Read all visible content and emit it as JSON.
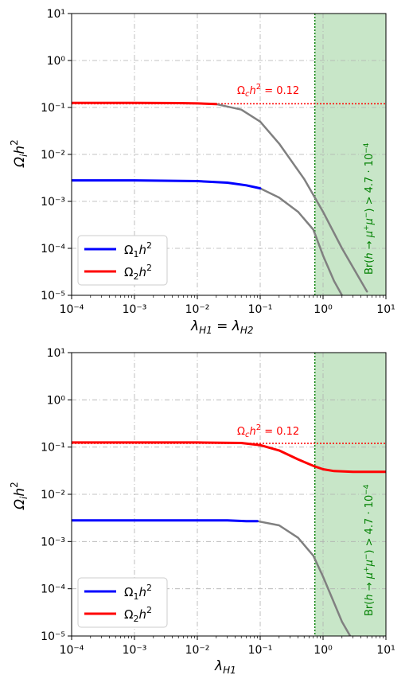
{
  "chart_data": [
    {
      "type": "line",
      "title": "",
      "xlabel": "λH1 = λH2",
      "ylabel": "Ωih²",
      "xscale": "log",
      "yscale": "log",
      "xlim": [
        0.0001,
        10
      ],
      "ylim": [
        1e-05,
        10
      ],
      "grid": true,
      "x_tick_labels": [
        "10⁻⁴",
        "10⁻³",
        "10⁻²",
        "10⁻¹",
        "10⁰",
        "10¹"
      ],
      "y_tick_labels": [
        "10⁻⁵",
        "10⁻⁴",
        "10⁻³",
        "10⁻²",
        "10⁻¹",
        "10⁰",
        "10¹"
      ],
      "series": [
        {
          "name": "Ω1h²",
          "color": "#0000ff",
          "x": [
            0.0001,
            0.001,
            0.01,
            0.03,
            0.06,
            0.1
          ],
          "y": [
            0.0028,
            0.0028,
            0.0027,
            0.0025,
            0.0022,
            0.0019
          ]
        },
        {
          "name": "Ω2h²",
          "color": "#ff0000",
          "x": [
            0.0001,
            0.001,
            0.005,
            0.01,
            0.02
          ],
          "y": [
            0.125,
            0.125,
            0.124,
            0.122,
            0.118
          ]
        },
        {
          "color": "#808080",
          "x": [
            0.1,
            0.2,
            0.4,
            0.7,
            1.0,
            1.5,
            2.0
          ],
          "y": [
            0.0019,
            0.0012,
            0.0006,
            0.00025,
            7e-05,
            2e-05,
            1e-05
          ]
        },
        {
          "color": "#808080",
          "x": [
            0.02,
            0.05,
            0.1,
            0.2,
            0.5,
            1.0,
            2.0,
            5.0
          ],
          "y": [
            0.118,
            0.09,
            0.05,
            0.017,
            0.003,
            0.0006,
            0.0001,
            1.2e-05
          ]
        }
      ],
      "hline": {
        "y": 0.12,
        "color": "#ff0000",
        "label": "Ωch² = 0.12"
      },
      "vline": {
        "x": 0.74,
        "color": "#008000"
      },
      "shaded_region": {
        "x": [
          0.74,
          10
        ],
        "color": "#c8e6c8",
        "label": "Br(h→μ⁺μ⁻) > 4.7·10⁻⁴"
      },
      "legend": "lower-left"
    },
    {
      "type": "line",
      "title": "",
      "xlabel": "λH1",
      "ylabel": "Ωih²",
      "xscale": "log",
      "yscale": "log",
      "xlim": [
        0.0001,
        10
      ],
      "ylim": [
        1e-05,
        10
      ],
      "grid": true,
      "x_tick_labels": [
        "10⁻⁴",
        "10⁻³",
        "10⁻²",
        "10⁻¹",
        "10⁰",
        "10¹"
      ],
      "y_tick_labels": [
        "10⁻⁵",
        "10⁻⁴",
        "10⁻³",
        "10⁻²",
        "10⁻¹",
        "10⁰",
        "10¹"
      ],
      "series": [
        {
          "name": "Ω1h²",
          "color": "#0000ff",
          "x": [
            0.0001,
            0.001,
            0.01,
            0.03,
            0.06,
            0.09
          ],
          "y": [
            0.0028,
            0.0028,
            0.0028,
            0.0028,
            0.0027,
            0.0027
          ]
        },
        {
          "name": "Ω2h²",
          "color": "#ff0000",
          "x": [
            0.0001,
            0.001,
            0.01,
            0.05,
            0.1,
            0.2,
            0.4,
            0.7,
            1.0,
            1.5,
            3.0,
            10.0
          ],
          "y": [
            0.125,
            0.125,
            0.125,
            0.122,
            0.11,
            0.085,
            0.055,
            0.04,
            0.034,
            0.031,
            0.03,
            0.03
          ]
        },
        {
          "color": "#808080",
          "x": [
            0.09,
            0.2,
            0.4,
            0.7,
            1.0,
            1.5,
            2.0,
            2.7
          ],
          "y": [
            0.0027,
            0.0022,
            0.0012,
            0.0005,
            0.00018,
            5e-05,
            2e-05,
            1e-05
          ]
        }
      ],
      "hline": {
        "y": 0.12,
        "color": "#ff0000",
        "label": "Ωch² = 0.12"
      },
      "vline": {
        "x": 0.74,
        "color": "#008000"
      },
      "shaded_region": {
        "x": [
          0.74,
          10
        ],
        "color": "#c8e6c8",
        "label": "Br(h→μ⁺μ⁻) > 4.7·10⁻⁴"
      },
      "legend": "lower-left"
    }
  ]
}
